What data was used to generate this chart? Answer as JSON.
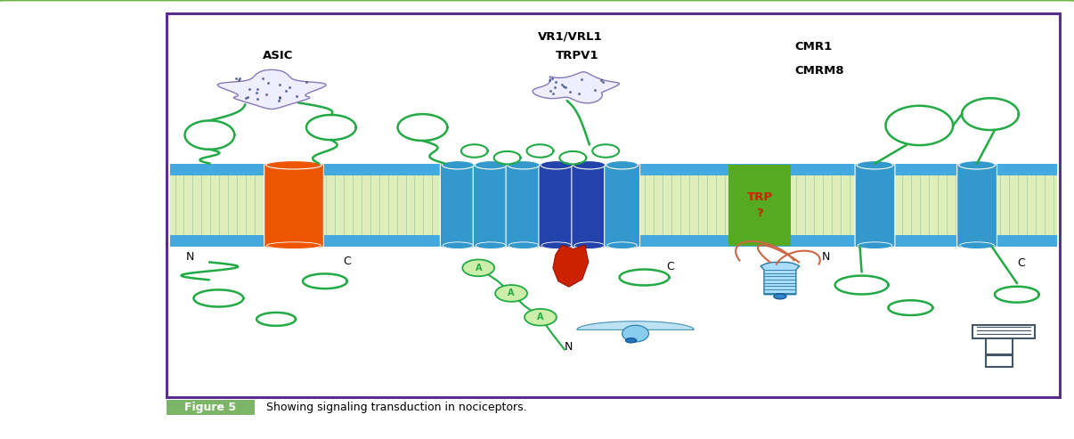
{
  "fig_width": 12.06,
  "fig_height": 4.93,
  "dpi": 100,
  "bg_color": "#ffffff",
  "outer_border_color": "#6db33f",
  "inner_border_color": "#5b2d8e",
  "caption_box_color": "#7cb567",
  "caption_text": "Showing signaling transduction in nociceptors.",
  "caption_label": "Figure 5",
  "membrane_color_blue": "#3399cc",
  "membrane_color_green": "#ccee88",
  "membrane_lipid_line": "#99cc55",
  "orange_color": "#ee5500",
  "blue_channel_color": "#3399cc",
  "dark_blue_color": "#2244aa",
  "green_box_color": "#55aa22",
  "trp_text_color": "#cc2200",
  "green_loop": "#22aa44",
  "label_asic": "ASIC",
  "label_vr1": "VR1/VRL1",
  "label_trpv1": "TRPV1",
  "label_cmr1": "CMR1",
  "label_cmrm8": "CMRM8"
}
